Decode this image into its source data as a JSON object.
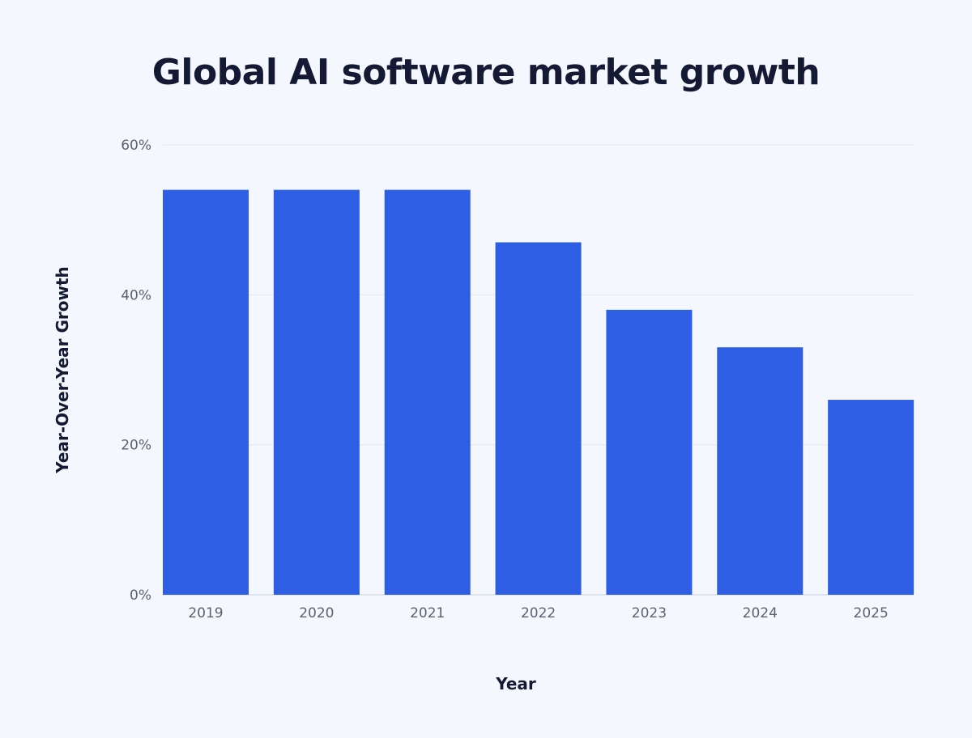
{
  "chart_data": {
    "type": "bar",
    "title": "Global AI software market growth",
    "xlabel": "Year",
    "ylabel": "Year-Over-Year Growth",
    "categories": [
      "2019",
      "2020",
      "2021",
      "2022",
      "2023",
      "2024",
      "2025"
    ],
    "values": [
      54,
      54,
      54,
      47,
      38,
      33,
      26
    ],
    "unit": "%",
    "ylim": [
      0,
      60
    ],
    "yticks": [
      0,
      20,
      40,
      60
    ],
    "ytick_labels": [
      "0%",
      "20%",
      "40%",
      "60%"
    ],
    "grid": true,
    "legend": "none",
    "colors": {
      "bar": "#2d5ee4",
      "background": "#f4f8fe",
      "title": "#141a33"
    }
  }
}
